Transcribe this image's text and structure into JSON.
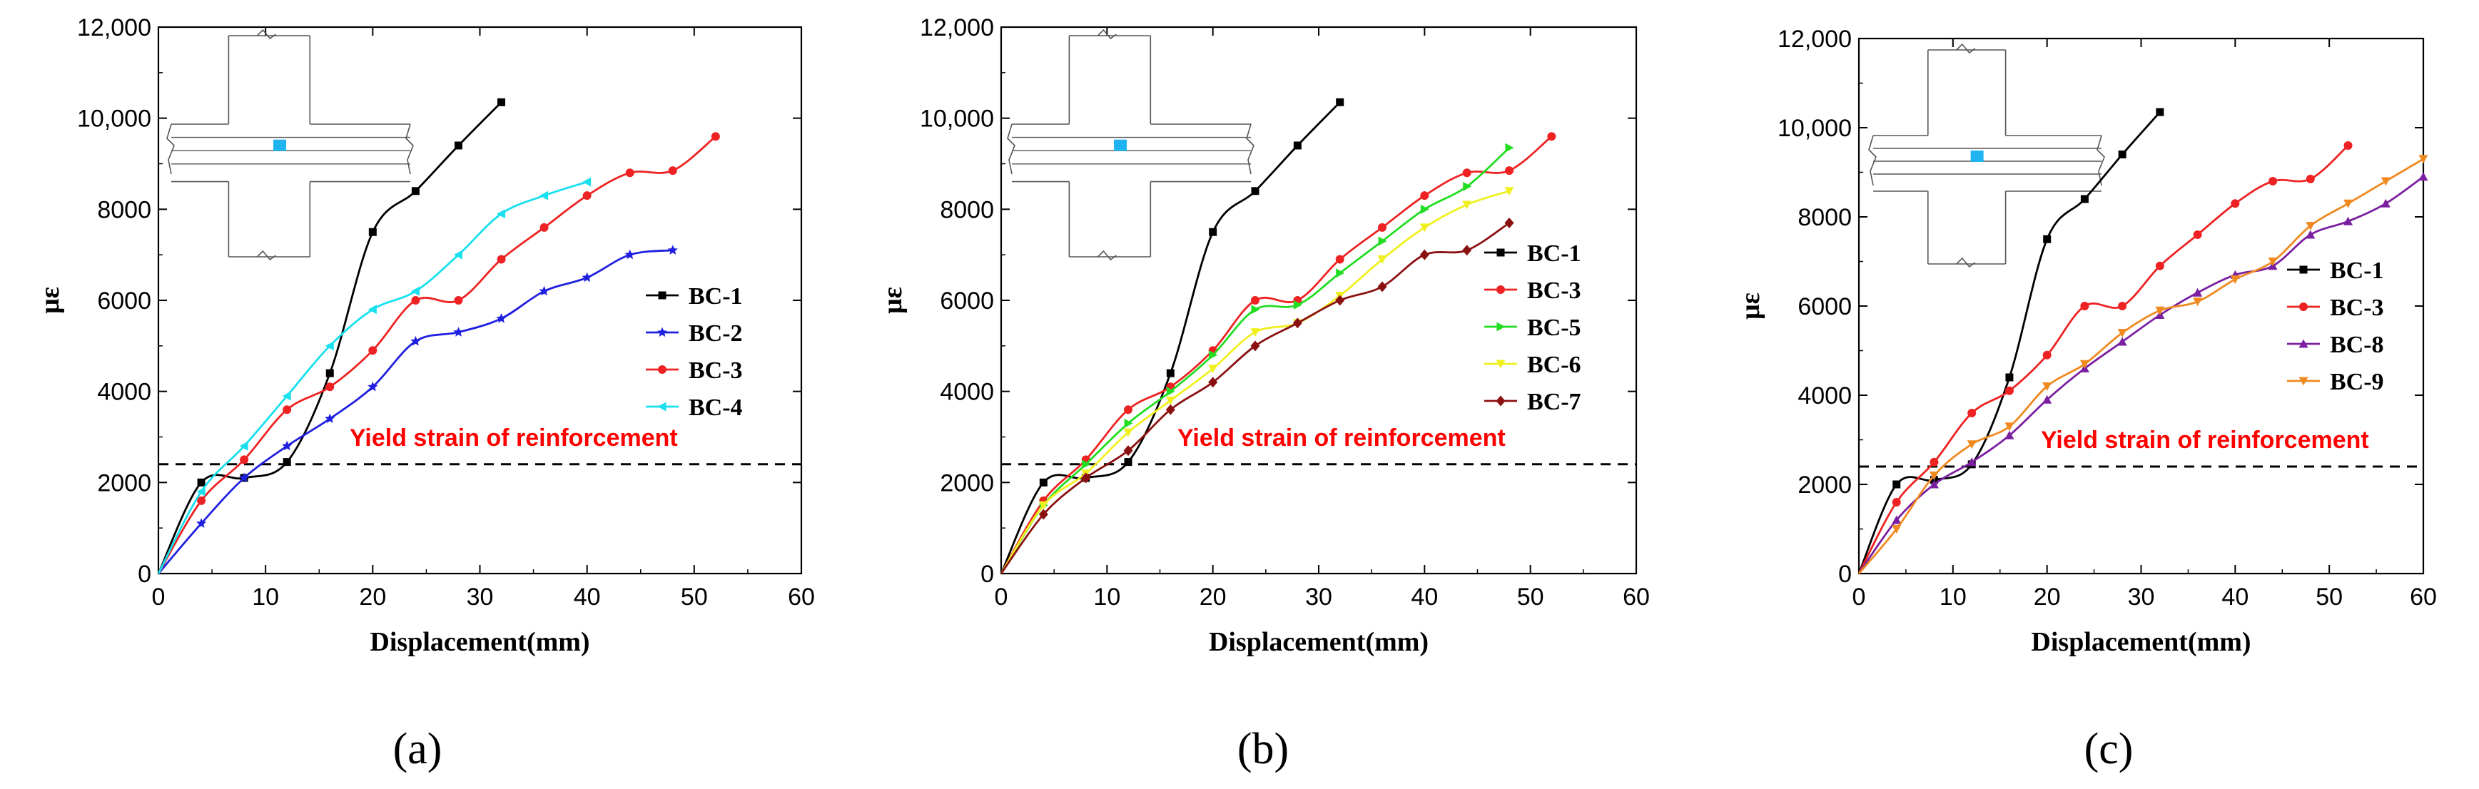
{
  "chart_data": [
    {
      "type": "line",
      "panel_label": "(a)",
      "xlabel": "Displacement(mm)",
      "ylabel": "με",
      "xlim": [
        0,
        60
      ],
      "ylim": [
        0,
        12000
      ],
      "x_ticks": [
        0,
        10,
        20,
        30,
        40,
        50,
        60
      ],
      "x_tick_labels": [
        "0",
        "10",
        "20",
        "30",
        "40",
        "50",
        "60"
      ],
      "y_ticks": [
        0,
        2000,
        4000,
        6000,
        8000,
        10000,
        12000
      ],
      "y_tick_labels": [
        "0",
        "2000",
        "4000",
        "6000",
        "8000",
        "10,000",
        "12,000"
      ],
      "annotation": {
        "text": "Yield strain of reinforcement",
        "y": 2400,
        "color": "#ff0000"
      },
      "reference_line": {
        "y": 2400,
        "style": "dashed"
      },
      "legend_position": "right",
      "series": [
        {
          "name": "BC-1",
          "color": "#000000",
          "marker": "square",
          "x": [
            0,
            4,
            8,
            12,
            16,
            20,
            24,
            28,
            32
          ],
          "y": [
            0,
            2000,
            2100,
            2450,
            4400,
            7500,
            8400,
            9400,
            10350
          ]
        },
        {
          "name": "BC-2",
          "color": "#1f1fe0",
          "marker": "star",
          "x": [
            0,
            4,
            8,
            12,
            16,
            20,
            24,
            28,
            32,
            36,
            40,
            44,
            48
          ],
          "y": [
            0,
            1100,
            2100,
            2800,
            3400,
            4100,
            5100,
            5300,
            5600,
            6200,
            6500,
            7000,
            7100
          ]
        },
        {
          "name": "BC-3",
          "color": "#ee2222",
          "marker": "circle",
          "x": [
            0,
            4,
            8,
            12,
            16,
            20,
            24,
            28,
            32,
            36,
            40,
            44,
            48,
            52
          ],
          "y": [
            0,
            1600,
            2500,
            3600,
            4100,
            4900,
            6000,
            6000,
            6900,
            7600,
            8300,
            8800,
            8850,
            9600
          ]
        },
        {
          "name": "BC-4",
          "color": "#18e0ee",
          "marker": "triangle-left",
          "x": [
            0,
            4,
            8,
            12,
            16,
            20,
            24,
            28,
            32,
            36,
            40
          ],
          "y": [
            0,
            1800,
            2800,
            3900,
            5000,
            5800,
            6200,
            7000,
            7900,
            8300,
            8600
          ]
        }
      ]
    },
    {
      "type": "line",
      "panel_label": "(b)",
      "xlabel": "Displacement(mm)",
      "ylabel": "με",
      "xlim": [
        0,
        60
      ],
      "ylim": [
        0,
        12000
      ],
      "x_ticks": [
        0,
        10,
        20,
        30,
        40,
        50,
        60
      ],
      "x_tick_labels": [
        "0",
        "10",
        "20",
        "30",
        "40",
        "50",
        "60"
      ],
      "y_ticks": [
        0,
        2000,
        4000,
        6000,
        8000,
        10000,
        12000
      ],
      "y_tick_labels": [
        "0",
        "2000",
        "4000",
        "6000",
        "8000",
        "10,000",
        "12,000"
      ],
      "annotation": {
        "text": "Yield strain of reinforcement",
        "y": 2400,
        "color": "#ff0000"
      },
      "reference_line": {
        "y": 2400,
        "style": "dashed"
      },
      "legend_position": "right",
      "series": [
        {
          "name": "BC-1",
          "color": "#000000",
          "marker": "square",
          "x": [
            0,
            4,
            8,
            12,
            16,
            20,
            24,
            28,
            32
          ],
          "y": [
            0,
            2000,
            2100,
            2450,
            4400,
            7500,
            8400,
            9400,
            10350
          ]
        },
        {
          "name": "BC-3",
          "color": "#ee2222",
          "marker": "circle",
          "x": [
            0,
            4,
            8,
            12,
            16,
            20,
            24,
            28,
            32,
            36,
            40,
            44,
            48,
            52
          ],
          "y": [
            0,
            1600,
            2500,
            3600,
            4100,
            4900,
            6000,
            6000,
            6900,
            7600,
            8300,
            8800,
            8850,
            9600
          ]
        },
        {
          "name": "BC-5",
          "color": "#22dd22",
          "marker": "triangle-right",
          "x": [
            0,
            4,
            8,
            12,
            16,
            20,
            24,
            28,
            32,
            36,
            40,
            44,
            48
          ],
          "y": [
            0,
            1500,
            2400,
            3300,
            4000,
            4800,
            5800,
            5900,
            6600,
            7300,
            8000,
            8500,
            9350
          ]
        },
        {
          "name": "BC-6",
          "color": "#f0f020",
          "marker": "triangle-down",
          "x": [
            0,
            4,
            8,
            12,
            16,
            20,
            24,
            28,
            32,
            36,
            40,
            44,
            48
          ],
          "y": [
            0,
            1500,
            2200,
            3100,
            3800,
            4500,
            5300,
            5500,
            6100,
            6900,
            7600,
            8100,
            8400
          ]
        },
        {
          "name": "BC-7",
          "color": "#8b1010",
          "marker": "diamond",
          "x": [
            0,
            4,
            8,
            12,
            16,
            20,
            24,
            28,
            32,
            36,
            40,
            44,
            48
          ],
          "y": [
            0,
            1300,
            2100,
            2700,
            3600,
            4200,
            5000,
            5500,
            6000,
            6300,
            7000,
            7100,
            7700
          ]
        }
      ]
    },
    {
      "type": "line",
      "panel_label": "(c)",
      "xlabel": "Displacement(mm)",
      "ylabel": "με",
      "xlim": [
        0,
        60
      ],
      "ylim": [
        0,
        12000
      ],
      "x_ticks": [
        0,
        10,
        20,
        30,
        40,
        50,
        60
      ],
      "x_tick_labels": [
        "0",
        "10",
        "20",
        "30",
        "40",
        "50",
        "60"
      ],
      "y_ticks": [
        0,
        2000,
        4000,
        6000,
        8000,
        10000,
        12000
      ],
      "y_tick_labels": [
        "0",
        "2000",
        "4000",
        "6000",
        "8000",
        "10,000",
        "12,000"
      ],
      "annotation": {
        "text": "Yield strain of reinforcement",
        "y": 2400,
        "color": "#ff0000"
      },
      "reference_line": {
        "y": 2400,
        "style": "dashed"
      },
      "legend_position": "right",
      "series": [
        {
          "name": "BC-1",
          "color": "#000000",
          "marker": "square",
          "x": [
            0,
            4,
            8,
            12,
            16,
            20,
            24,
            28,
            32
          ],
          "y": [
            0,
            2000,
            2100,
            2450,
            4400,
            7500,
            8400,
            9400,
            10350
          ]
        },
        {
          "name": "BC-3",
          "color": "#ee2222",
          "marker": "circle",
          "x": [
            0,
            4,
            8,
            12,
            16,
            20,
            24,
            28,
            32,
            36,
            40,
            44,
            48,
            52
          ],
          "y": [
            0,
            1600,
            2500,
            3600,
            4100,
            4900,
            6000,
            6000,
            6900,
            7600,
            8300,
            8800,
            8850,
            9600
          ]
        },
        {
          "name": "BC-8",
          "color": "#7a1fa0",
          "marker": "triangle-up",
          "x": [
            0,
            4,
            8,
            12,
            16,
            20,
            24,
            28,
            32,
            36,
            40,
            44,
            48,
            52,
            56,
            60
          ],
          "y": [
            0,
            1200,
            2000,
            2500,
            3100,
            3900,
            4600,
            5200,
            5800,
            6300,
            6700,
            6900,
            7600,
            7900,
            8300,
            8900
          ]
        },
        {
          "name": "BC-9",
          "color": "#f08a20",
          "marker": "triangle-down",
          "x": [
            0,
            4,
            8,
            12,
            16,
            20,
            24,
            28,
            32,
            36,
            40,
            44,
            48,
            52,
            56,
            60
          ],
          "y": [
            0,
            1000,
            2200,
            2900,
            3300,
            4200,
            4700,
            5400,
            5900,
            6100,
            6600,
            7000,
            7800,
            8300,
            8800,
            9300
          ]
        }
      ]
    }
  ],
  "inset_marker_color": "#1fb4f0"
}
